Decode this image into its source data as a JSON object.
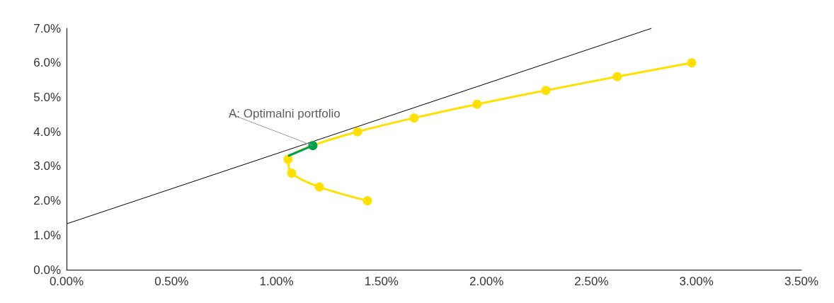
{
  "chart_data": {
    "type": "line",
    "xlim": [
      0,
      3.5
    ],
    "ylim": [
      0,
      7
    ],
    "xticks": [
      {
        "value": 0,
        "label": "0.00%"
      },
      {
        "value": 0.5,
        "label": "0.50%"
      },
      {
        "value": 1,
        "label": "1.00%"
      },
      {
        "value": 1.5,
        "label": "1.50%"
      },
      {
        "value": 2,
        "label": "2.00%"
      },
      {
        "value": 2.5,
        "label": "2.50%"
      },
      {
        "value": 3,
        "label": "3.00%"
      },
      {
        "value": 3.5,
        "label": "3.50%"
      }
    ],
    "yticks": [
      {
        "value": 0,
        "label": "0.0%"
      },
      {
        "value": 1,
        "label": "1.0%"
      },
      {
        "value": 2,
        "label": "2.0%"
      },
      {
        "value": 3,
        "label": "3.0%"
      },
      {
        "value": 4,
        "label": "4.0%"
      },
      {
        "value": 5,
        "label": "5.0%"
      },
      {
        "value": 6,
        "label": "6.0%"
      },
      {
        "value": 7,
        "label": "7.0%"
      }
    ],
    "grid": false,
    "series": [
      {
        "color": "#000000",
        "x": [
          0,
          2.786
        ],
        "values": [
          1.33,
          7.0
        ],
        "marker": "none"
      },
      {
        "color": "#ffe000",
        "x": [
          1.433,
          1.204,
          1.072,
          1.055,
          1.173,
          1.386,
          1.655,
          1.955,
          2.283,
          2.623,
          2.977
        ],
        "values": [
          2.0,
          2.4,
          2.8,
          3.2,
          3.6,
          4.0,
          4.4,
          4.8,
          5.2,
          5.6,
          6.0
        ],
        "marker": "circle"
      },
      {
        "color": "#00a050",
        "x": [
          1.055,
          1.173
        ],
        "values": [
          3.3,
          3.6
        ],
        "marker": "circle"
      }
    ],
    "annotations": [
      {
        "text": "A: Optimalni portfolio",
        "x": 1.173,
        "y": 3.6
      }
    ]
  }
}
